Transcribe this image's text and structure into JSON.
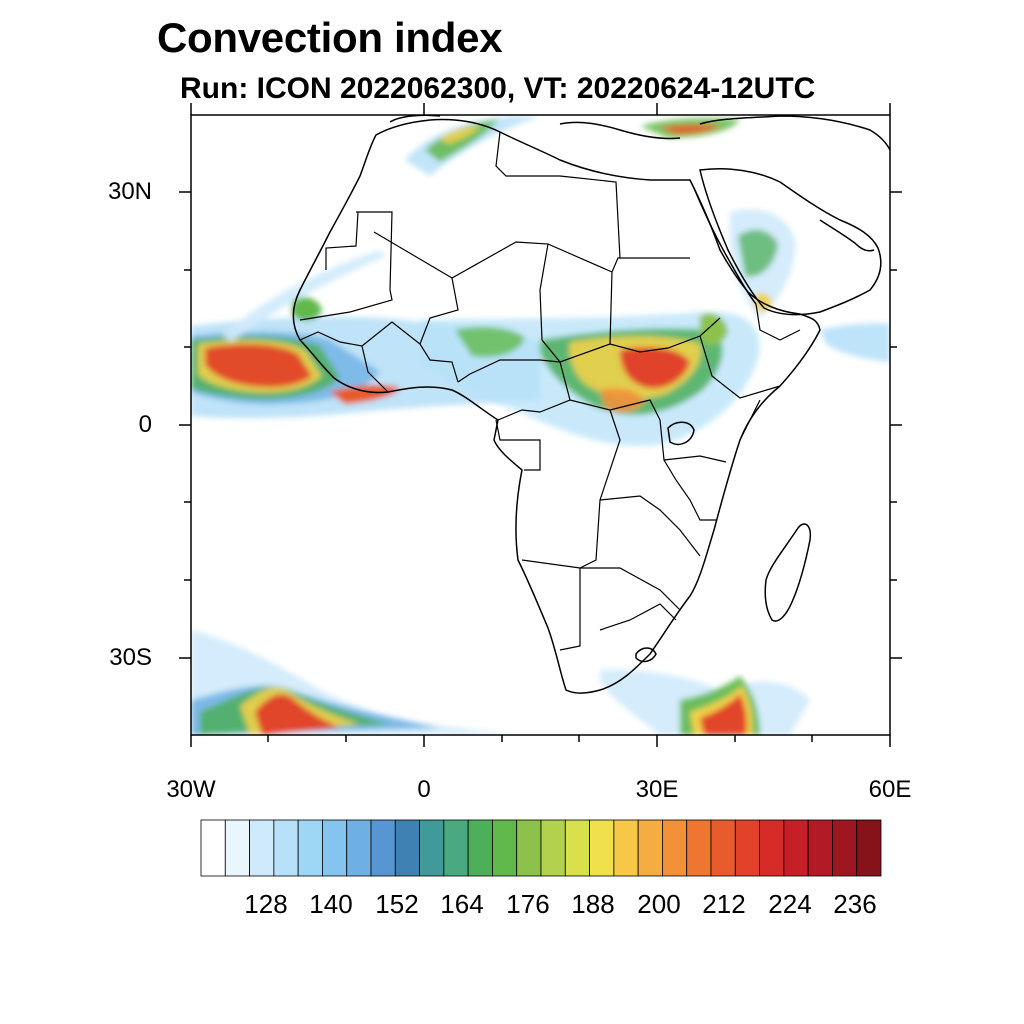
{
  "title": "Convection index",
  "subtitle": "Run: ICON 2022062300,  VT: 20220624-12UTC",
  "map": {
    "lon_range": [
      -30,
      60
    ],
    "lat_range": [
      -40,
      40
    ],
    "lat_labels": [
      "30N",
      "0",
      "30S"
    ],
    "lon_labels": [
      "30W",
      "0",
      "30E",
      "60E"
    ]
  },
  "colorbar": {
    "colors": [
      "#ffffff",
      "#e9f6fd",
      "#cfeafb",
      "#b7e1f8",
      "#9ed7f6",
      "#85c4ee",
      "#6eb0e4",
      "#5796d2",
      "#3f81b3",
      "#3f9a99",
      "#4aa97f",
      "#4caf5a",
      "#60b94a",
      "#8cc24b",
      "#b2d14c",
      "#d8e04c",
      "#f0e04c",
      "#f7c848",
      "#f5ad41",
      "#f39138",
      "#ee7630",
      "#e85b2c",
      "#e14229",
      "#d72b28",
      "#c61f28",
      "#b21a25",
      "#9e1720",
      "#86131a"
    ],
    "tick_labels": [
      "128",
      "140",
      "152",
      "164",
      "176",
      "188",
      "200",
      "212",
      "224",
      "236"
    ]
  }
}
